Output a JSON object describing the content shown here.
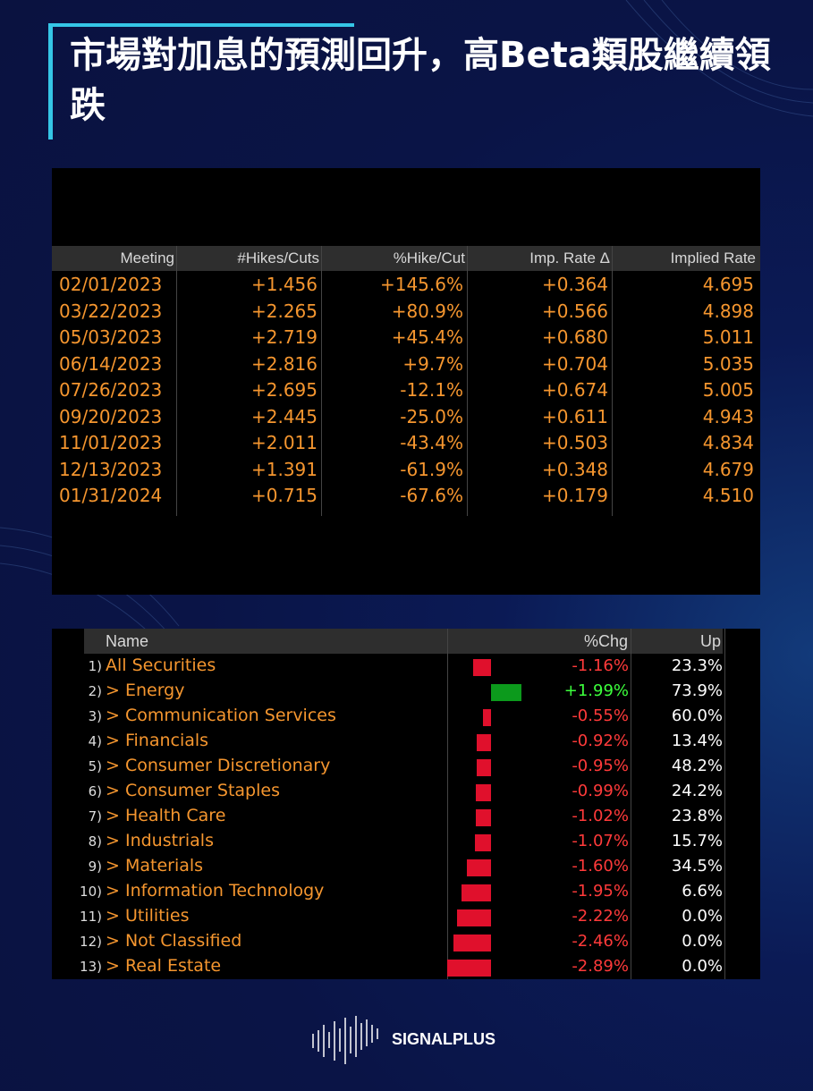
{
  "title": "市場對加息的預測回升，高Beta類股繼續領跌",
  "rate_table": {
    "headers": [
      "Meeting",
      "#Hikes/Cuts",
      "%Hike/Cut",
      "Imp. Rate Δ",
      "Implied Rate"
    ],
    "rows": [
      [
        "02/01/2023",
        "+1.456",
        "+145.6%",
        "+0.364",
        "4.695"
      ],
      [
        "03/22/2023",
        "+2.265",
        "+80.9%",
        "+0.566",
        "4.898"
      ],
      [
        "05/03/2023",
        "+2.719",
        "+45.4%",
        "+0.680",
        "5.011"
      ],
      [
        "06/14/2023",
        "+2.816",
        "+9.7%",
        "+0.704",
        "5.035"
      ],
      [
        "07/26/2023",
        "+2.695",
        "-12.1%",
        "+0.674",
        "5.005"
      ],
      [
        "09/20/2023",
        "+2.445",
        "-25.0%",
        "+0.611",
        "4.943"
      ],
      [
        "11/01/2023",
        "+2.011",
        "-43.4%",
        "+0.503",
        "4.834"
      ],
      [
        "12/13/2023",
        "+1.391",
        "-61.9%",
        "+0.348",
        "4.679"
      ],
      [
        "01/31/2024",
        "+0.715",
        "-67.6%",
        "+0.179",
        "4.510"
      ]
    ]
  },
  "sector_table": {
    "headers": [
      "Name",
      "%Chg",
      "Up"
    ],
    "rows": [
      {
        "num": "1)",
        "name": "All Securities",
        "chg": {
          "value": -1.16,
          "label": "-1.16%"
        },
        "up": "23.3%"
      },
      {
        "num": "2)",
        "name": "> Energy",
        "chg": {
          "value": 1.99,
          "label": "+1.99%"
        },
        "up": "73.9%"
      },
      {
        "num": "3)",
        "name": "> Communication Services",
        "chg": {
          "value": -0.55,
          "label": "-0.55%"
        },
        "up": "60.0%"
      },
      {
        "num": "4)",
        "name": "> Financials",
        "chg": {
          "value": -0.92,
          "label": "-0.92%"
        },
        "up": "13.4%"
      },
      {
        "num": "5)",
        "name": "> Consumer Discretionary",
        "chg": {
          "value": -0.95,
          "label": "-0.95%"
        },
        "up": "48.2%"
      },
      {
        "num": "6)",
        "name": "> Consumer Staples",
        "chg": {
          "value": -0.99,
          "label": "-0.99%"
        },
        "up": "24.2%"
      },
      {
        "num": "7)",
        "name": "> Health Care",
        "chg": {
          "value": -1.02,
          "label": "-1.02%"
        },
        "up": "23.8%"
      },
      {
        "num": "8)",
        "name": "> Industrials",
        "chg": {
          "value": -1.07,
          "label": "-1.07%"
        },
        "up": "15.7%"
      },
      {
        "num": "9)",
        "name": "> Materials",
        "chg": {
          "value": -1.6,
          "label": "-1.60%"
        },
        "up": "34.5%"
      },
      {
        "num": "10)",
        "name": "> Information Technology",
        "chg": {
          "value": -1.95,
          "label": "-1.95%"
        },
        "up": "6.6%"
      },
      {
        "num": "11)",
        "name": "> Utilities",
        "chg": {
          "value": -2.22,
          "label": "-2.22%"
        },
        "up": "0.0%"
      },
      {
        "num": "12)",
        "name": "> Not Classified",
        "chg": {
          "value": -2.46,
          "label": "-2.46%"
        },
        "up": "0.0%"
      },
      {
        "num": "13)",
        "name": "> Real Estate",
        "chg": {
          "value": -2.89,
          "label": "-2.89%"
        },
        "up": "0.0%"
      }
    ]
  },
  "brand": "SIGNALPLUS"
}
